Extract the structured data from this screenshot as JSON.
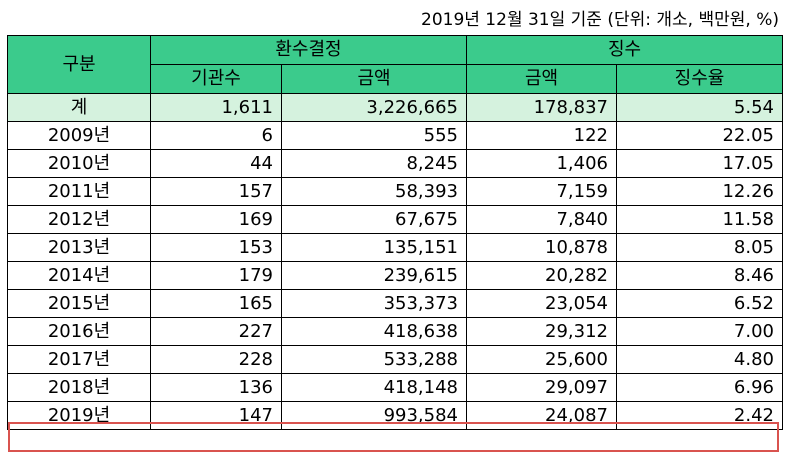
{
  "note": "2019년 12월 31일 기준 (단위: 개소, 백만원, %)",
  "headers": {
    "category": "구분",
    "group_refund": "환수결정",
    "group_collect": "징수",
    "agencies": "기관수",
    "amount_refund": "금액",
    "amount_collect": "금액",
    "rate": "징수율"
  },
  "rows": [
    {
      "label": "계",
      "agencies": "1,611",
      "refund": "3,226,665",
      "collected": "178,837",
      "rate": "5.54"
    },
    {
      "label": "2009년",
      "agencies": "6",
      "refund": "555",
      "collected": "122",
      "rate": "22.05"
    },
    {
      "label": "2010년",
      "agencies": "44",
      "refund": "8,245",
      "collected": "1,406",
      "rate": "17.05"
    },
    {
      "label": "2011년",
      "agencies": "157",
      "refund": "58,393",
      "collected": "7,159",
      "rate": "12.26"
    },
    {
      "label": "2012년",
      "agencies": "169",
      "refund": "67,675",
      "collected": "7,840",
      "rate": "11.58"
    },
    {
      "label": "2013년",
      "agencies": "153",
      "refund": "135,151",
      "collected": "10,878",
      "rate": "8.05"
    },
    {
      "label": "2014년",
      "agencies": "179",
      "refund": "239,615",
      "collected": "20,282",
      "rate": "8.46"
    },
    {
      "label": "2015년",
      "agencies": "165",
      "refund": "353,373",
      "collected": "23,054",
      "rate": "6.52"
    },
    {
      "label": "2016년",
      "agencies": "227",
      "refund": "418,638",
      "collected": "29,312",
      "rate": "7.00"
    },
    {
      "label": "2017년",
      "agencies": "228",
      "refund": "533,288",
      "collected": "25,600",
      "rate": "4.80"
    },
    {
      "label": "2018년",
      "agencies": "136",
      "refund": "418,148",
      "collected": "29,097",
      "rate": "6.96"
    },
    {
      "label": "2019년",
      "agencies": "147",
      "refund": "993,584",
      "collected": "24,087",
      "rate": "2.42"
    }
  ],
  "highlight_color": "#d9534f",
  "header_color": "#3bcb8c",
  "total_row_color": "#d5f2de"
}
